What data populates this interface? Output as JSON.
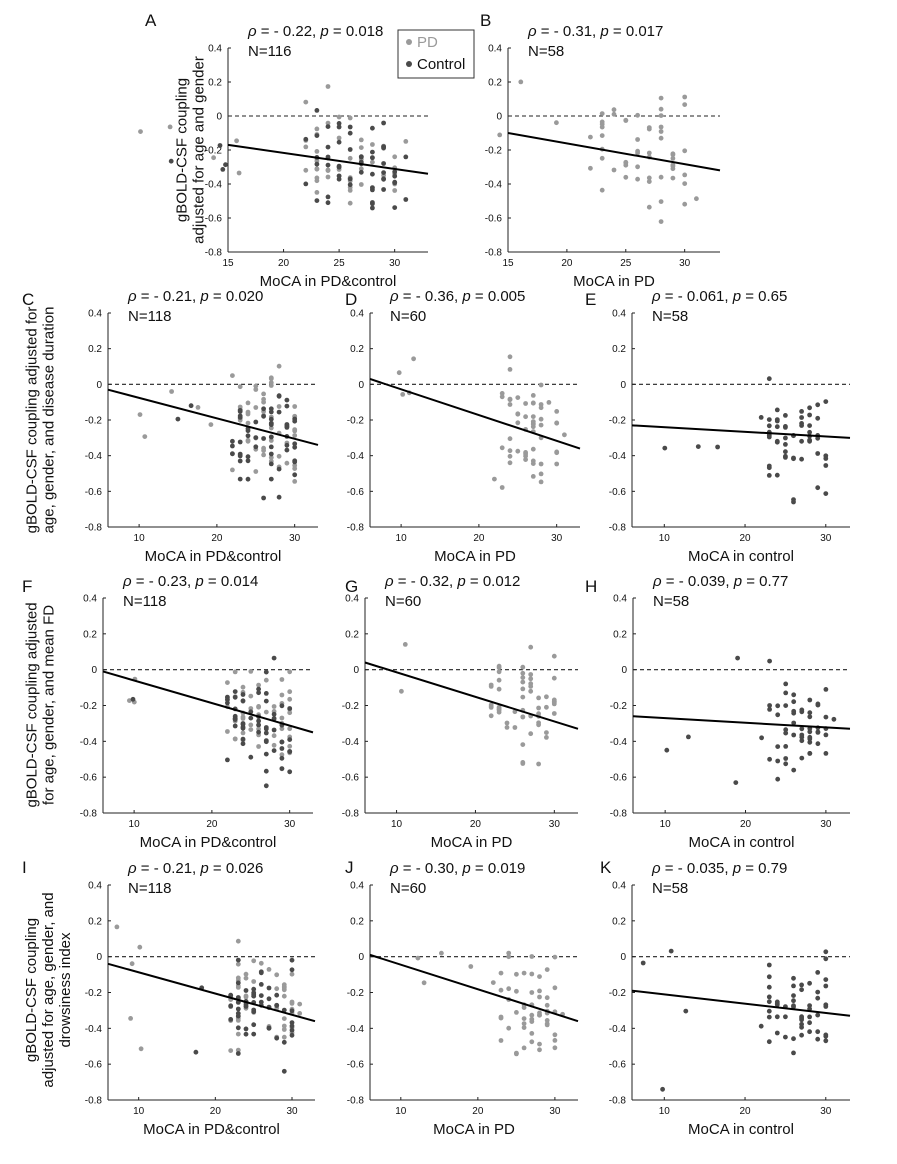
{
  "figure": {
    "colors": {
      "pd": "#9a9a9a",
      "control": "#4a4a4a",
      "axis": "#222222",
      "fit": "#000000"
    },
    "legend": [
      {
        "label": "PD",
        "key": "pd"
      },
      {
        "label": "Control",
        "key": "control"
      }
    ],
    "row_ylabels": [
      [
        "gBOLD-CSF coupling",
        "adjusted for age and gender"
      ],
      [
        "gBOLD-CSF coupling adjusted for",
        "age, gender, and disease duration"
      ],
      [
        "gBOLD-CSF coupling adjusted",
        "for age, gender, and mean FD"
      ],
      [
        "gBOLD-CSF coupling",
        "adjusted for age, gender, and",
        "drowsiness index"
      ]
    ]
  },
  "chart_data": [
    {
      "id": "A",
      "type": "scatter",
      "xlabel": "MoCA in PD&control",
      "rho": "- 0.22",
      "p": "0.018",
      "n": "N=116",
      "xlim": [
        15,
        33
      ],
      "ylim": [
        -0.8,
        0.4
      ],
      "xticks": [
        15,
        20,
        25,
        30
      ],
      "fit": {
        "x": [
          15,
          33
        ],
        "y": [
          -0.17,
          -0.34
        ]
      },
      "groups": "both",
      "seed": 11,
      "npd": 58,
      "nctl": 58
    },
    {
      "id": "B",
      "type": "scatter",
      "xlabel": "MoCA in PD",
      "rho": "- 0.31",
      "p": "0.017",
      "n": "N=58",
      "xlim": [
        15,
        33
      ],
      "ylim": [
        -0.8,
        0.4
      ],
      "xticks": [
        15,
        20,
        25,
        30
      ],
      "fit": {
        "x": [
          15,
          33
        ],
        "y": [
          -0.1,
          -0.32
        ]
      },
      "groups": "pd",
      "seed": 23,
      "npd": 58,
      "nctl": 0
    },
    {
      "id": "C",
      "type": "scatter",
      "xlabel": "MoCA in PD&control",
      "rho": "- 0.21",
      "p": "0.020",
      "n": "N=118",
      "xlim": [
        6,
        33
      ],
      "ylim": [
        -0.8,
        0.4
      ],
      "xticks": [
        10,
        20,
        30
      ],
      "fit": {
        "x": [
          6,
          33
        ],
        "y": [
          -0.03,
          -0.34
        ]
      },
      "groups": "both",
      "seed": 37,
      "npd": 60,
      "nctl": 58
    },
    {
      "id": "D",
      "type": "scatter",
      "xlabel": "MoCA in PD",
      "rho": "- 0.36",
      "p": "0.005",
      "n": "N=60",
      "xlim": [
        6,
        33
      ],
      "ylim": [
        -0.8,
        0.4
      ],
      "xticks": [
        10,
        20,
        30
      ],
      "fit": {
        "x": [
          6,
          33
        ],
        "y": [
          0.03,
          -0.36
        ]
      },
      "groups": "pd",
      "seed": 41,
      "npd": 60,
      "nctl": 0
    },
    {
      "id": "E",
      "type": "scatter",
      "xlabel": "MoCA in control",
      "rho": "- 0.061",
      "p": "0.65",
      "n": "N=58",
      "xlim": [
        6,
        33
      ],
      "ylim": [
        -0.8,
        0.4
      ],
      "xticks": [
        10,
        20,
        30
      ],
      "fit": {
        "x": [
          6,
          33
        ],
        "y": [
          -0.23,
          -0.3
        ]
      },
      "groups": "control",
      "seed": 53,
      "npd": 0,
      "nctl": 58
    },
    {
      "id": "F",
      "type": "scatter",
      "xlabel": "MoCA in PD&control",
      "rho": "- 0.23",
      "p": "0.014",
      "n": "N=118",
      "xlim": [
        6,
        33
      ],
      "ylim": [
        -0.8,
        0.4
      ],
      "xticks": [
        10,
        20,
        30
      ],
      "fit": {
        "x": [
          6,
          33
        ],
        "y": [
          -0.01,
          -0.35
        ]
      },
      "groups": "both",
      "seed": 61,
      "npd": 60,
      "nctl": 58
    },
    {
      "id": "G",
      "type": "scatter",
      "xlabel": "MoCA in PD",
      "rho": "- 0.32",
      "p": "0.012",
      "n": "N=60",
      "xlim": [
        6,
        33
      ],
      "ylim": [
        -0.8,
        0.4
      ],
      "xticks": [
        10,
        20,
        30
      ],
      "fit": {
        "x": [
          6,
          33
        ],
        "y": [
          0.04,
          -0.33
        ]
      },
      "groups": "pd",
      "seed": 71,
      "npd": 60,
      "nctl": 0
    },
    {
      "id": "H",
      "type": "scatter",
      "xlabel": "MoCA in control",
      "rho": "- 0.039",
      "p": "0.77",
      "n": "N=58",
      "xlim": [
        6,
        33
      ],
      "ylim": [
        -0.8,
        0.4
      ],
      "xticks": [
        10,
        20,
        30
      ],
      "fit": {
        "x": [
          6,
          33
        ],
        "y": [
          -0.26,
          -0.33
        ]
      },
      "groups": "control",
      "seed": 83,
      "npd": 0,
      "nctl": 58
    },
    {
      "id": "I",
      "type": "scatter",
      "xlabel": "MoCA in PD&control",
      "rho": "- 0.21",
      "p": "0.026",
      "n": "N=118",
      "xlim": [
        6,
        33
      ],
      "ylim": [
        -0.8,
        0.4
      ],
      "xticks": [
        10,
        20,
        30
      ],
      "fit": {
        "x": [
          6,
          33
        ],
        "y": [
          -0.04,
          -0.36
        ]
      },
      "groups": "both",
      "seed": 97,
      "npd": 60,
      "nctl": 58
    },
    {
      "id": "J",
      "type": "scatter",
      "xlabel": "MoCA in PD",
      "rho": "- 0.30",
      "p": "0.019",
      "n": "N=60",
      "xlim": [
        6,
        33
      ],
      "ylim": [
        -0.8,
        0.4
      ],
      "xticks": [
        10,
        20,
        30
      ],
      "fit": {
        "x": [
          6,
          33
        ],
        "y": [
          0.01,
          -0.36
        ]
      },
      "groups": "pd",
      "seed": 103,
      "npd": 60,
      "nctl": 0
    },
    {
      "id": "K",
      "type": "scatter",
      "xlabel": "MoCA in control",
      "rho": "- 0.035",
      "p": "0.79",
      "n": "N=58",
      "xlim": [
        6,
        33
      ],
      "ylim": [
        -0.8,
        0.4
      ],
      "xticks": [
        10,
        20,
        30
      ],
      "fit": {
        "x": [
          6,
          33
        ],
        "y": [
          -0.19,
          -0.33
        ]
      },
      "groups": "control",
      "seed": 113,
      "npd": 0,
      "nctl": 58
    }
  ]
}
